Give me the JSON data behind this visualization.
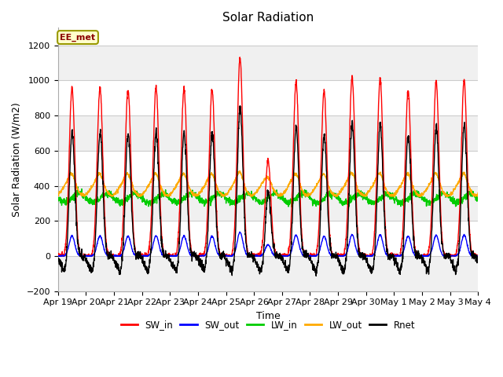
{
  "title": "Solar Radiation",
  "ylabel": "Solar Radiation (W/m2)",
  "xlabel": "Time",
  "ylim": [
    -200,
    1300
  ],
  "yticks": [
    -200,
    0,
    200,
    400,
    600,
    800,
    1000,
    1200
  ],
  "xtick_labels": [
    "Apr 19",
    "Apr 20",
    "Apr 21",
    "Apr 22",
    "Apr 23",
    "Apr 24",
    "Apr 25",
    "Apr 26",
    "Apr 27",
    "Apr 28",
    "Apr 29",
    "Apr 30",
    "May 1",
    "May 2",
    "May 3",
    "May 4"
  ],
  "colors": {
    "SW_in": "#ff0000",
    "SW_out": "#0000ff",
    "LW_in": "#00cc00",
    "LW_out": "#ffaa00",
    "Rnet": "#000000"
  },
  "annotation_text": "EE_met",
  "annotation_color": "#8B0000",
  "annotation_bg": "#ffffcc",
  "annotation_edge": "#999900",
  "fig_bg": "#ffffff",
  "plot_bg": "#ffffff",
  "band_color_light": "#f0f0f0",
  "band_color_dark": "#ffffff",
  "grid_color": "#cccccc",
  "title_fontsize": 11,
  "axis_fontsize": 9,
  "tick_fontsize": 8,
  "sw_in_peaks": [
    960,
    960,
    950,
    960,
    955,
    950,
    1130,
    550,
    990,
    940,
    1020,
    1010,
    940,
    990,
    1000
  ],
  "lw_in_base": 330,
  "lw_out_base": 385
}
